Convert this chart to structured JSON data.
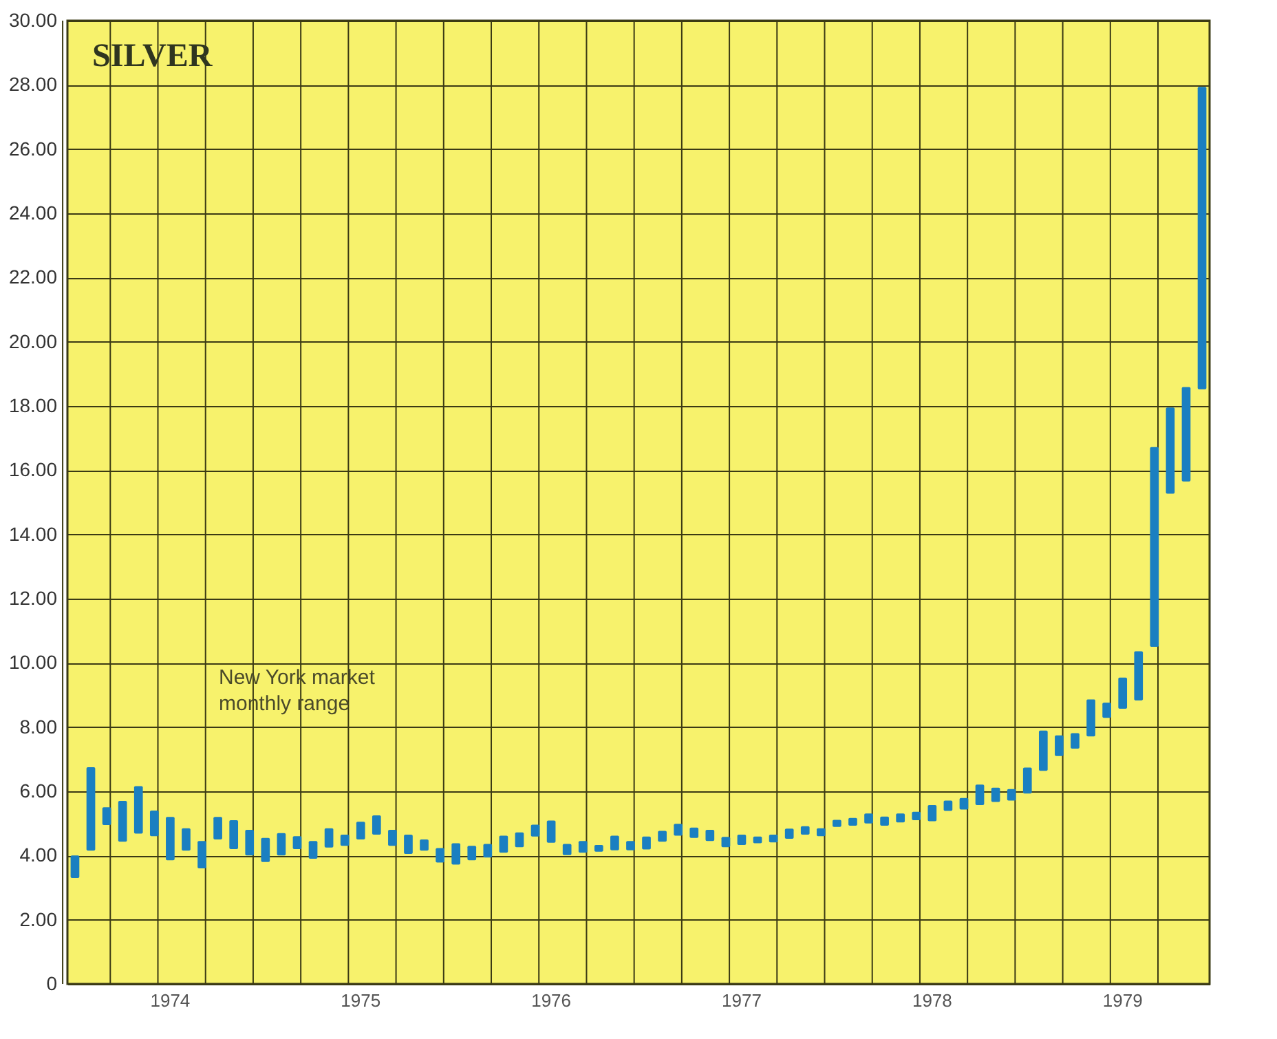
{
  "chart_data": {
    "type": "bar",
    "title": "SILVER",
    "annotations": [
      "New York market\nmonthly range"
    ],
    "categories": [
      null,
      null,
      null,
      null,
      null,
      null,
      "1974",
      null,
      null,
      null,
      null,
      null,
      null,
      null,
      null,
      null,
      null,
      null,
      "1975",
      null,
      null,
      null,
      null,
      null,
      null,
      null,
      null,
      null,
      null,
      null,
      "1976",
      null,
      null,
      null,
      null,
      null,
      null,
      null,
      null,
      null,
      null,
      null,
      "1977",
      null,
      null,
      null,
      null,
      null,
      null,
      null,
      null,
      null,
      null,
      null,
      "1978",
      null,
      null,
      null,
      null,
      null,
      null,
      null,
      null,
      null,
      null,
      null,
      "1979",
      null,
      null,
      null,
      null,
      null
    ],
    "base": [
      3.3,
      4.15,
      4.95,
      4.43,
      4.68,
      4.6,
      3.85,
      4.15,
      3.6,
      4.5,
      4.2,
      4.0,
      3.8,
      4.0,
      4.2,
      3.9,
      4.25,
      4.3,
      4.5,
      4.65,
      4.3,
      4.05,
      4.15,
      3.78,
      3.72,
      3.85,
      3.94,
      4.09,
      4.26,
      4.59,
      4.4,
      4.01,
      4.09,
      4.12,
      4.16,
      4.16,
      4.19,
      4.43,
      4.62,
      4.55,
      4.45,
      4.26,
      4.33,
      4.38,
      4.41,
      4.52,
      4.65,
      4.6,
      4.89,
      4.93,
      5.0,
      4.93,
      5.03,
      5.1,
      5.07,
      5.39,
      5.43,
      5.57,
      5.67,
      5.71,
      5.93,
      6.64,
      7.1,
      7.33,
      7.71,
      8.29,
      8.57,
      8.83,
      10.5,
      15.27,
      15.65,
      18.52
    ],
    "values": [
      0.7,
      2.6,
      0.55,
      1.27,
      1.48,
      0.8,
      1.35,
      0.7,
      0.85,
      0.7,
      0.9,
      0.8,
      0.75,
      0.7,
      0.4,
      0.55,
      0.6,
      0.35,
      0.55,
      0.6,
      0.5,
      0.6,
      0.35,
      0.45,
      0.66,
      0.45,
      0.42,
      0.53,
      0.46,
      0.37,
      0.69,
      0.35,
      0.36,
      0.21,
      0.46,
      0.29,
      0.4,
      0.34,
      0.37,
      0.32,
      0.35,
      0.32,
      0.32,
      0.21,
      0.24,
      0.32,
      0.26,
      0.25,
      0.22,
      0.24,
      0.31,
      0.28,
      0.28,
      0.26,
      0.5,
      0.32,
      0.36,
      0.64,
      0.44,
      0.36,
      0.81,
      1.25,
      0.64,
      0.48,
      1.15,
      0.47,
      0.97,
      1.53,
      6.22,
      2.68,
      2.94,
      9.42
    ],
    "color": "#1a7fc1",
    "ylim": [
      0,
      30
    ],
    "yticks": [
      0,
      {
        "value": 2,
        "label": "2.00"
      },
      {
        "value": 4,
        "label": "4.00"
      },
      {
        "value": 6,
        "label": "6.00"
      },
      {
        "value": 8,
        "label": "8.00"
      },
      {
        "value": 10,
        "label": "10.00"
      },
      {
        "value": 12,
        "label": "12.00"
      },
      {
        "value": 14,
        "label": "14.00"
      },
      {
        "value": 16,
        "label": "16.00"
      },
      {
        "value": 18,
        "label": "18.00"
      },
      {
        "value": 20,
        "label": "20.00"
      },
      {
        "value": 22,
        "label": "22.00"
      },
      {
        "value": 24,
        "label": "24.00"
      },
      {
        "value": 26,
        "label": "26.00"
      },
      {
        "value": 28,
        "label": "28.00"
      },
      {
        "value": 30,
        "label": "30.00"
      }
    ],
    "grid": true
  }
}
